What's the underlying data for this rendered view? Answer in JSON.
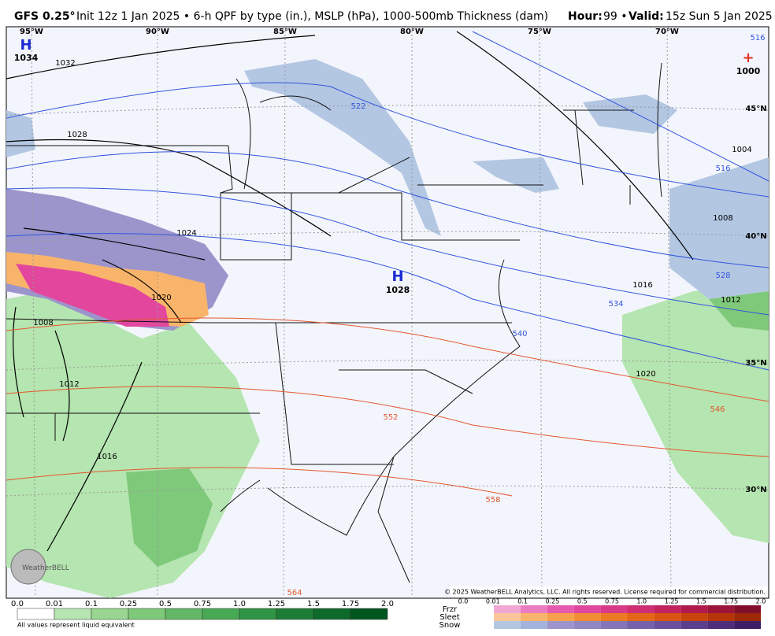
{
  "header": {
    "model": "GFS 0.25°",
    "description": "Init 12z 1 Jan 2025 • 6-h QPF by type (in.), MSLP (hPa), 1000-500mb Thickness (dam)",
    "hour_label": "Hour:",
    "hour": "99 •",
    "valid_label": "Valid:",
    "valid": "15z Sun 5 Jan 2025"
  },
  "map": {
    "longitudes": [
      "95°W",
      "90°W",
      "85°W",
      "80°W",
      "75°W",
      "70°W"
    ],
    "latitudes": [
      "45°N",
      "40°N",
      "35°N",
      "30°N"
    ],
    "pressure_centers": [
      {
        "symbol": "H",
        "value": "1034"
      },
      {
        "symbol": "H",
        "value": "1028"
      },
      {
        "symbol": "+",
        "value": "1000"
      }
    ],
    "isobar_labels": [
      "1032",
      "1028",
      "1024",
      "1020",
      "1016",
      "1012",
      "1008",
      "1016",
      "1020",
      "1012",
      "1008",
      "1004"
    ],
    "thickness_labels": [
      "522",
      "516",
      "516",
      "528",
      "534",
      "540",
      "546",
      "552",
      "558",
      "564"
    ],
    "copyright": "© 2025 WeatherBELL Analytics, LLC. All rights reserved. License required for commercial distribution.",
    "logo": "WeatherBELL"
  },
  "legend": {
    "rain_scale": [
      "0.0",
      "0.01",
      "0.1",
      "0.25",
      "0.5",
      "0.75",
      "1.0",
      "1.25",
      "1.5",
      "1.75",
      "2.0"
    ],
    "note": "All values represent liquid equivalent",
    "types": [
      "Frzr",
      "Sleet",
      "Snow"
    ],
    "type_scale": [
      "0.0",
      "0.01",
      "0.1",
      "0.25",
      "0.5",
      "0.75",
      "1.0",
      "1.25",
      "1.5",
      "1.75",
      "2.0"
    ]
  }
}
